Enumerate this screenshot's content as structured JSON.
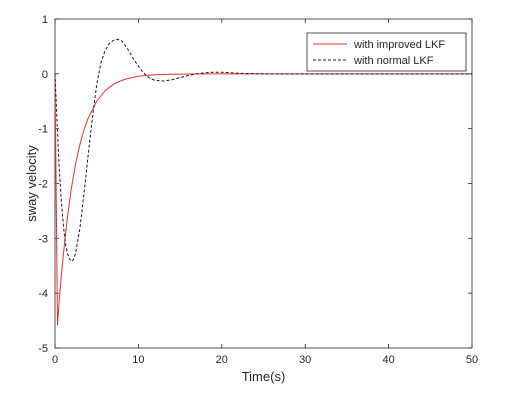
{
  "chart_data": {
    "type": "line",
    "title": "",
    "xlabel": "Time(s)",
    "ylabel": "sway velocity",
    "xlim": [
      0,
      50
    ],
    "ylim": [
      -5,
      1
    ],
    "xticks": [
      0,
      10,
      20,
      30,
      40,
      50
    ],
    "yticks": [
      -5,
      -4,
      -3,
      -2,
      -1,
      0,
      1
    ],
    "grid": false,
    "legend_position": "top-right",
    "series": [
      {
        "name": "with improved LKF",
        "color": "#e0302c",
        "style": "solid",
        "x": [
          0,
          0.3,
          0.5,
          0.75,
          1,
          1.5,
          2,
          2.5,
          3,
          3.5,
          4,
          5,
          6,
          7,
          8,
          9,
          10,
          11,
          12,
          14,
          16,
          18,
          20,
          25,
          30,
          40,
          50
        ],
        "y": [
          0,
          -4.58,
          -4.15,
          -3.7,
          -3.3,
          -2.6,
          -2.05,
          -1.62,
          -1.28,
          -1.01,
          -0.8,
          -0.5,
          -0.31,
          -0.19,
          -0.12,
          -0.075,
          -0.045,
          -0.028,
          -0.017,
          -0.007,
          -0.003,
          0,
          0,
          0,
          0,
          0,
          0
        ]
      },
      {
        "name": "with normal LKF",
        "color": "#1a1a1a",
        "style": "dashed",
        "x": [
          0,
          0.25,
          0.5,
          0.75,
          1,
          1.25,
          1.5,
          1.75,
          2,
          2.25,
          2.5,
          3,
          3.5,
          4,
          4.5,
          5,
          5.5,
          6,
          6.5,
          7,
          7.5,
          8,
          8.5,
          9,
          9.5,
          10,
          10.5,
          11,
          11.5,
          12,
          13,
          14,
          15,
          16,
          17,
          18,
          19,
          20,
          22,
          25,
          30,
          40,
          50
        ],
        "y": [
          0,
          -0.9,
          -1.7,
          -2.3,
          -2.75,
          -3.1,
          -3.28,
          -3.38,
          -3.42,
          -3.38,
          -3.25,
          -2.8,
          -2.15,
          -1.45,
          -0.78,
          -0.2,
          0.2,
          0.42,
          0.55,
          0.61,
          0.63,
          0.6,
          0.5,
          0.38,
          0.25,
          0.14,
          0.04,
          -0.04,
          -0.09,
          -0.12,
          -0.13,
          -0.11,
          -0.07,
          -0.03,
          0.0,
          0.02,
          0.03,
          0.03,
          0.01,
          0,
          0,
          0,
          0
        ]
      }
    ]
  }
}
